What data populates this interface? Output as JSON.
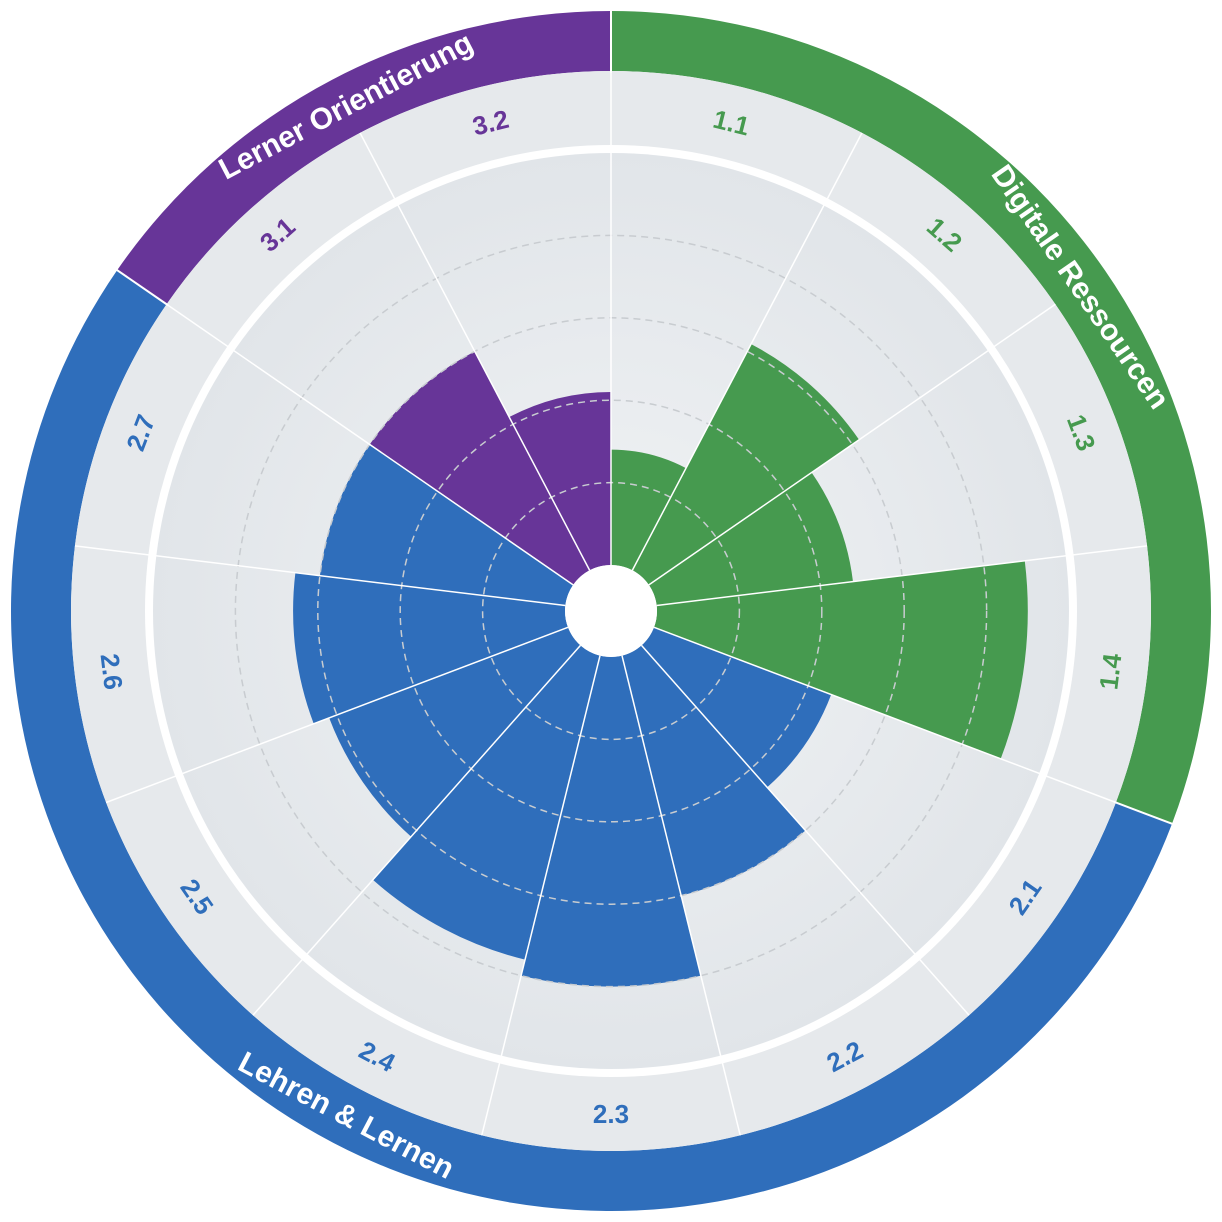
{
  "chart_data": {
    "type": "polar-area",
    "title": "",
    "scale_max": 5,
    "rings": [
      1,
      2,
      3,
      4
    ],
    "categories": [
      {
        "name": "Digitale Ressourcen",
        "color": "#469a4f",
        "segments": [
          "1.1",
          "1.2",
          "1.3",
          "1.4"
        ]
      },
      {
        "name": "Lehren & Lernen",
        "color": "#2f6ebb",
        "segments": [
          "2.1",
          "2.2",
          "2.3",
          "2.4",
          "2.5",
          "2.6",
          "2.7"
        ]
      },
      {
        "name": "Lerner Orientierung",
        "color": "#673598",
        "segments": [
          "3.1",
          "3.2"
        ]
      }
    ],
    "segments": [
      {
        "label": "1.1",
        "category": "Digitale Ressourcen",
        "value": 1.4
      },
      {
        "label": "1.2",
        "category": "Digitale Ressourcen",
        "value": 3.1
      },
      {
        "label": "1.3",
        "category": "Digitale Ressourcen",
        "value": 2.4
      },
      {
        "label": "1.4",
        "category": "Digitale Ressourcen",
        "value": 4.5
      },
      {
        "label": "2.1",
        "category": "Lehren & Lernen",
        "value": 2.3
      },
      {
        "label": "2.2",
        "category": "Lehren & Lernen",
        "value": 3.0
      },
      {
        "label": "2.3",
        "category": "Lehren & Lernen",
        "value": 4.0
      },
      {
        "label": "2.4",
        "category": "Lehren & Lernen",
        "value": 3.8
      },
      {
        "label": "2.5",
        "category": "Lehren & Lernen",
        "value": 3.1
      },
      {
        "label": "2.6",
        "category": "Lehren & Lernen",
        "value": 3.3
      },
      {
        "label": "2.7",
        "category": "Lehren & Lernen",
        "value": 3.0
      },
      {
        "label": "3.1",
        "category": "Lerner Orientierung",
        "value": 3.0
      },
      {
        "label": "3.2",
        "category": "Lerner Orientierung",
        "value": 2.1
      }
    ]
  }
}
